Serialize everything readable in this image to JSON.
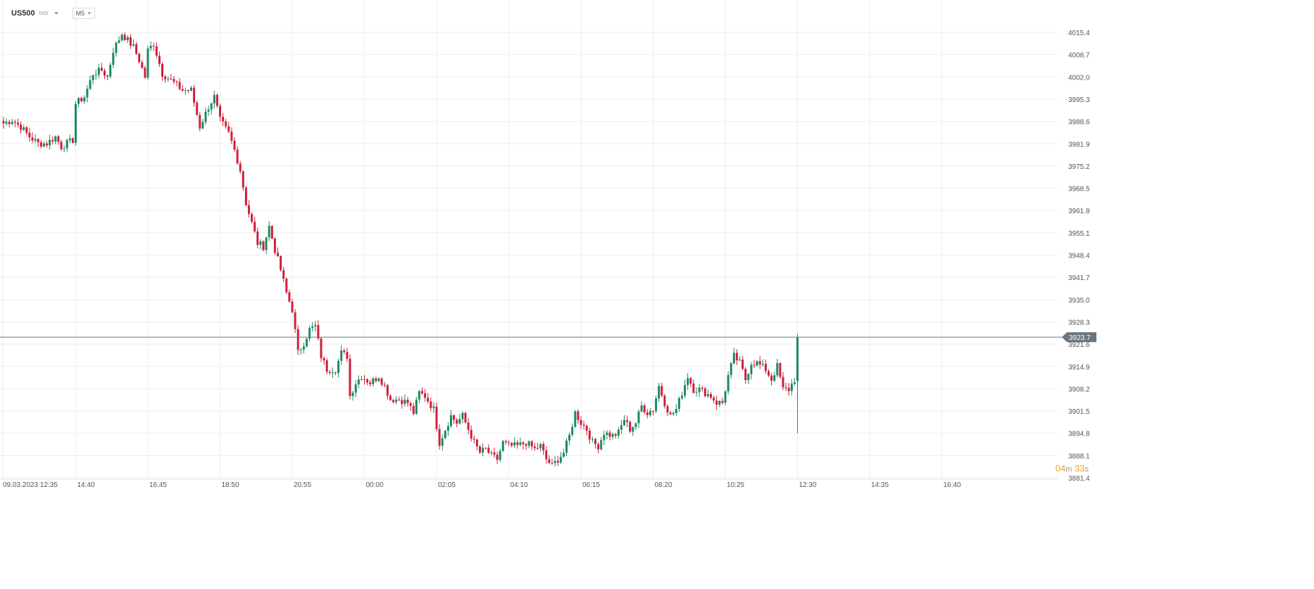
{
  "header": {
    "symbol": "US500",
    "symbol_type": "IND",
    "timeframe": "M5"
  },
  "countdown": {
    "minutes": "04",
    "minutes_unit": "m",
    "seconds": "33",
    "seconds_unit": "s"
  },
  "colors": {
    "up": "#1a8a5f",
    "down": "#d01e3a",
    "grid": "#eeeeee",
    "price_line": "#6b7580",
    "price_label_bg": "#6b7580",
    "countdown": "#f4a21b"
  },
  "chart_data": {
    "type": "candlestick",
    "symbol": "US500",
    "timeframe": "M5",
    "y_ticks": [
      "4015.4",
      "4008.7",
      "4002.0",
      "3995.3",
      "3988.6",
      "3981.9",
      "3975.2",
      "3968.5",
      "3961.8",
      "3955.1",
      "3948.4",
      "3941.7",
      "3935.0",
      "3928.3",
      "3921.6",
      "3914.9",
      "3908.2",
      "3901.5",
      "3894.8",
      "3888.1",
      "3881.4"
    ],
    "ylim": [
      3881.4,
      4022.1
    ],
    "x_ticks": [
      "09.03.2023  12:35",
      "14:40",
      "16:45",
      "18:50",
      "20:55",
      "00:00",
      "02:05",
      "04:10",
      "06:15",
      "08:20",
      "10:25",
      "12:30",
      "14:35",
      "16:40"
    ],
    "x_tick_times": [
      "12:35",
      "14:40",
      "16:45",
      "18:50",
      "20:55",
      "00:00",
      "02:05",
      "04:10",
      "06:15",
      "08:20",
      "10:25",
      "12:30",
      "14:35",
      "16:40"
    ],
    "current_price": "3923.7",
    "grid": true,
    "path_points": [
      [
        0,
        3988
      ],
      [
        3,
        3989
      ],
      [
        6,
        3987
      ],
      [
        9,
        3984
      ],
      [
        12,
        3982
      ],
      [
        15,
        3982
      ],
      [
        18,
        3984
      ],
      [
        20,
        3981
      ],
      [
        22,
        3982
      ],
      [
        24,
        3983
      ],
      [
        25,
        3994
      ],
      [
        28,
        3996
      ],
      [
        31,
        4003
      ],
      [
        34,
        4004
      ],
      [
        36,
        4002
      ],
      [
        38,
        4010
      ],
      [
        41,
        4015
      ],
      [
        43,
        4013
      ],
      [
        45,
        4011
      ],
      [
        47,
        4007
      ],
      [
        49,
        4002
      ],
      [
        50,
        4010
      ],
      [
        52,
        4012
      ],
      [
        55,
        4003
      ],
      [
        58,
        4001
      ],
      [
        62,
        3998
      ],
      [
        65,
        3998
      ],
      [
        68,
        3987
      ],
      [
        71,
        3993
      ],
      [
        73,
        3996
      ],
      [
        75,
        3989
      ],
      [
        78,
        3985
      ],
      [
        80,
        3980
      ],
      [
        82,
        3974
      ],
      [
        84,
        3964
      ],
      [
        86,
        3958
      ],
      [
        88,
        3952
      ],
      [
        90,
        3951
      ],
      [
        92,
        3957
      ],
      [
        94,
        3950
      ],
      [
        96,
        3944
      ],
      [
        98,
        3937
      ],
      [
        100,
        3932
      ],
      [
        102,
        3919
      ],
      [
        104,
        3922
      ],
      [
        106,
        3926
      ],
      [
        108,
        3927
      ],
      [
        110,
        3918
      ],
      [
        112,
        3914
      ],
      [
        115,
        3914
      ],
      [
        117,
        3919
      ],
      [
        119,
        3918
      ],
      [
        120,
        3906
      ],
      [
        122,
        3910
      ],
      [
        124,
        3912
      ],
      [
        127,
        3910
      ],
      [
        130,
        3912
      ],
      [
        132,
        3909
      ],
      [
        134,
        3905
      ],
      [
        137,
        3905
      ],
      [
        140,
        3904
      ],
      [
        142,
        3901
      ],
      [
        144,
        3907
      ],
      [
        146,
        3906
      ],
      [
        149,
        3902
      ],
      [
        151,
        3892
      ],
      [
        153,
        3896
      ],
      [
        155,
        3900
      ],
      [
        157,
        3898
      ],
      [
        159,
        3900
      ],
      [
        161,
        3896
      ],
      [
        163,
        3892
      ],
      [
        165,
        3889
      ],
      [
        167,
        3890
      ],
      [
        169,
        3888
      ],
      [
        171,
        3887
      ],
      [
        173,
        3892
      ],
      [
        175,
        3891
      ],
      [
        178,
        3891
      ],
      [
        181,
        3892
      ],
      [
        184,
        3890
      ],
      [
        186,
        3891
      ],
      [
        188,
        3887
      ],
      [
        190,
        3885
      ],
      [
        192,
        3887
      ],
      [
        194,
        3889
      ],
      [
        196,
        3894
      ],
      [
        198,
        3901
      ],
      [
        200,
        3898
      ],
      [
        202,
        3896
      ],
      [
        204,
        3892
      ],
      [
        206,
        3891
      ],
      [
        208,
        3895
      ],
      [
        211,
        3894
      ],
      [
        213,
        3895
      ],
      [
        215,
        3899
      ],
      [
        217,
        3896
      ],
      [
        219,
        3898
      ],
      [
        221,
        3903
      ],
      [
        223,
        3901
      ],
      [
        225,
        3902
      ],
      [
        227,
        3909
      ],
      [
        229,
        3904
      ],
      [
        231,
        3900
      ],
      [
        233,
        3902
      ],
      [
        235,
        3907
      ],
      [
        237,
        3912
      ],
      [
        239,
        3908
      ],
      [
        241,
        3908
      ],
      [
        243,
        3907
      ],
      [
        245,
        3906
      ],
      [
        247,
        3904
      ],
      [
        249,
        3904
      ],
      [
        251,
        3912
      ],
      [
        253,
        3918
      ],
      [
        255,
        3916
      ],
      [
        257,
        3911
      ],
      [
        259,
        3916
      ],
      [
        261,
        3916
      ],
      [
        264,
        3914
      ],
      [
        266,
        3911
      ],
      [
        268,
        3915
      ],
      [
        270,
        3908
      ],
      [
        272,
        3908
      ],
      [
        274,
        3911
      ],
      [
        275,
        3924
      ]
    ]
  }
}
